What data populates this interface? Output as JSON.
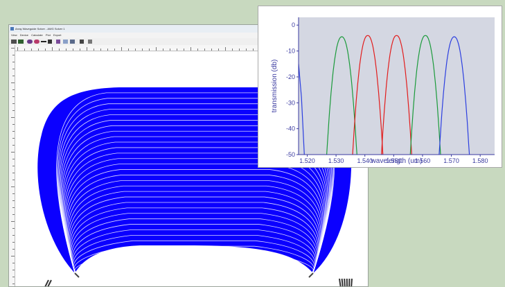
{
  "window": {
    "title": "Array Waveguide Solver - AWG Solver 1",
    "menus": [
      "View",
      "Device",
      "Calculate",
      "Plot",
      "Export"
    ]
  },
  "toolbar": {
    "icons": [
      "open-icon",
      "save-icon",
      "circle-tool-icon",
      "ellipse-tool-icon",
      "line-tool-icon",
      "pointer-icon",
      "draw-icon",
      "grid-icon",
      "chart-icon",
      "settings-icon",
      "help-icon"
    ]
  },
  "layout_view": {
    "waveguide_color": "#0b00ff",
    "waveguide_count": 30
  },
  "chart_data": {
    "type": "line",
    "xlabel": "wavelength (um)",
    "ylabel": "transmission (db)",
    "xlim": [
      1517,
      1585
    ],
    "ylim": [
      -50,
      3
    ],
    "xticks": [
      1520,
      1530,
      1540,
      1550,
      1560,
      1570,
      1580
    ],
    "xtick_labels": [
      "1.520",
      "1.530",
      "1.540",
      "1.550",
      "1.560",
      "1.570",
      "1.580"
    ],
    "yticks": [
      0,
      -10,
      -20,
      -30,
      -40,
      -50
    ],
    "ytick_labels": [
      "0",
      "-10",
      "-20",
      "-30",
      "-40",
      "-50"
    ],
    "grid": false,
    "background": "#d4d7e2",
    "series": [
      {
        "color": "#1a9a3a",
        "center": 1532,
        "width": 10.5,
        "peak": -4.5
      },
      {
        "color": "#e21b1b",
        "center": 1541,
        "width": 10.5,
        "peak": -4.0
      },
      {
        "color": "#e21b1b",
        "center": 1551,
        "width": 10.5,
        "peak": -4.0
      },
      {
        "color": "#1a9a3a",
        "center": 1561,
        "width": 10.5,
        "peak": -4.0
      },
      {
        "color": "#2b3ee0",
        "center": 1571,
        "width": 10.5,
        "peak": -4.5
      }
    ],
    "left_edge_series": {
      "color": "#2b3ee0",
      "x": [
        1517,
        1518,
        1519
      ],
      "y": [
        -15,
        -28,
        -50
      ]
    }
  }
}
